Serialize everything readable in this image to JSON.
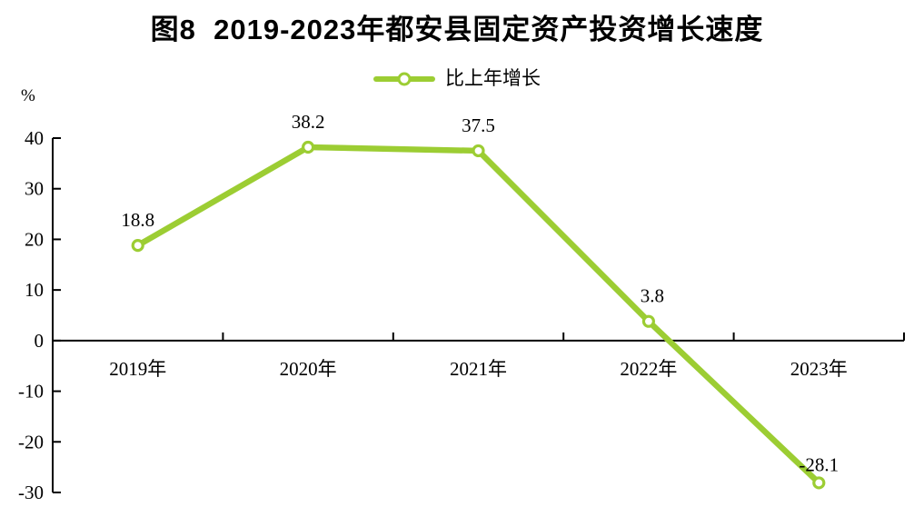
{
  "title": "图8  2019-2023年都安县固定资产投资增长速度",
  "legend": {
    "label": "比上年增长"
  },
  "y_axis_unit": "%",
  "colors": {
    "line": "#9CCD33",
    "marker_fill": "#FFFFFF",
    "axis": "#000000",
    "text": "#000000"
  },
  "chart_data": {
    "type": "line",
    "title": "图8  2019-2023年都安县固定资产投资增长速度",
    "categories": [
      "2019年",
      "2020年",
      "2021年",
      "2022年",
      "2023年"
    ],
    "series": [
      {
        "name": "比上年增长",
        "values": [
          18.8,
          38.2,
          37.5,
          3.8,
          -28.1
        ]
      }
    ],
    "point_labels": [
      "18.8",
      "38.2",
      "37.5",
      "3.8",
      "-28.1"
    ],
    "xlabel": "",
    "ylabel": "%",
    "ylim": [
      -30,
      40
    ],
    "yticks": [
      40,
      30,
      20,
      10,
      0,
      -10,
      -20,
      -30
    ],
    "grid": false,
    "legend_position": "top-center"
  }
}
